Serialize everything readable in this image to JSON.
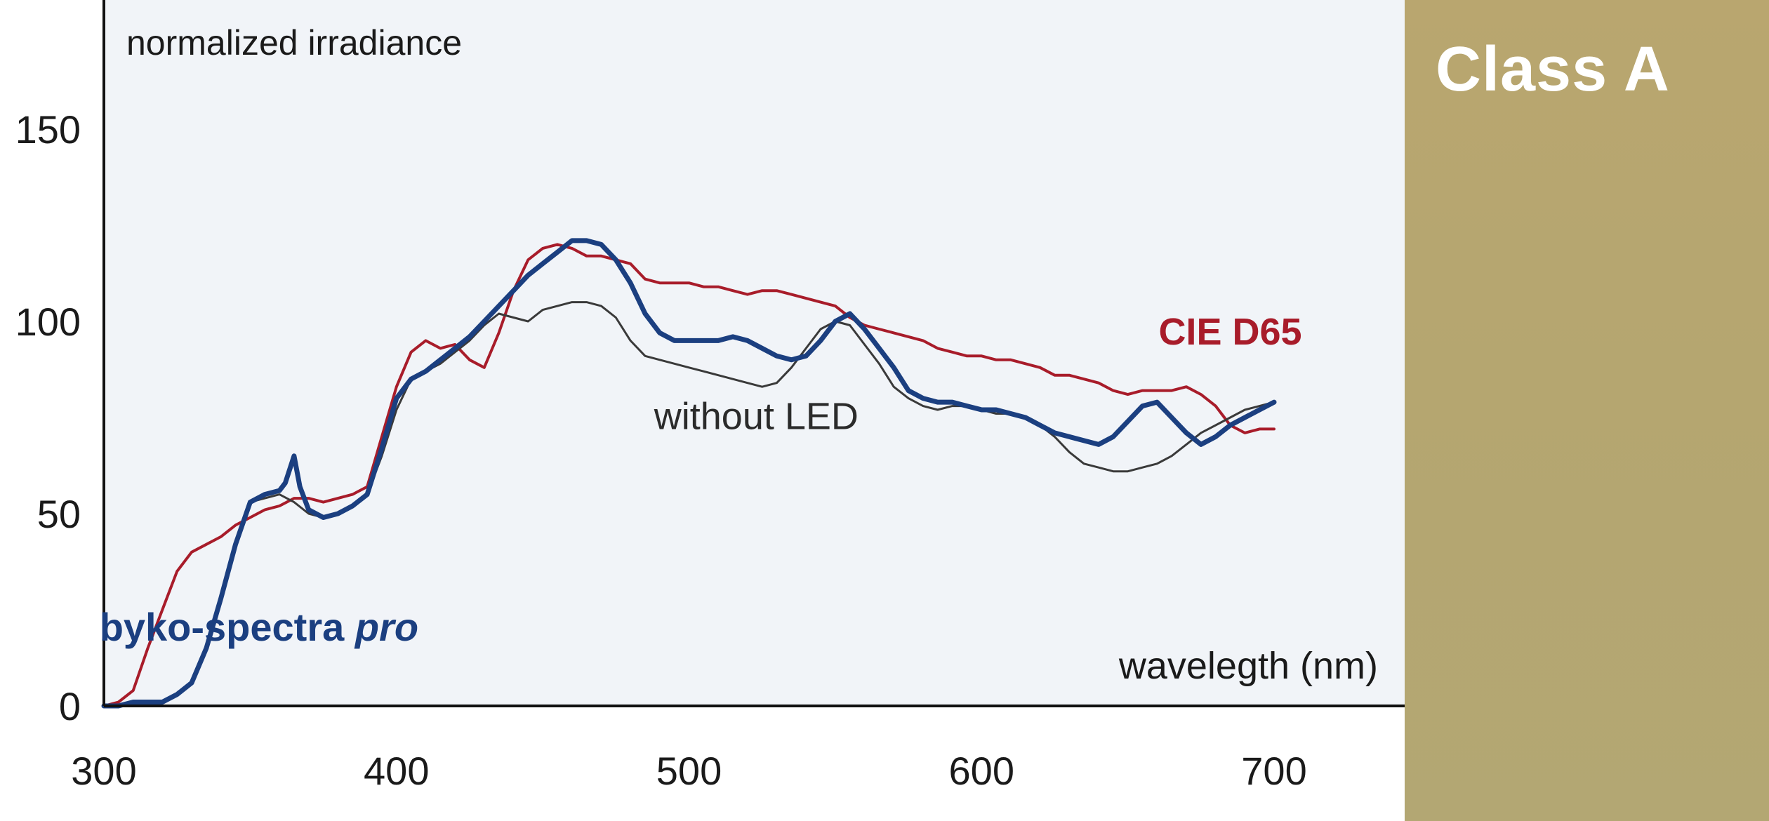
{
  "panel": {
    "label": "Class A",
    "color": "#b7a670"
  },
  "chart_data": {
    "type": "line",
    "ylabel": "normalized irradiance",
    "xlabel": "wavelegth (nm)",
    "xlim": [
      300,
      740
    ],
    "ylim": [
      0,
      180
    ],
    "x_ticks": [
      300,
      400,
      500,
      600,
      700
    ],
    "y_ticks": [
      0,
      50,
      100,
      150
    ],
    "grid": false,
    "plot_background": "#f1f4f8",
    "series": [
      {
        "name": "CIE D65",
        "color": "#a81c2a",
        "x": [
          300,
          305,
          310,
          315,
          320,
          325,
          330,
          335,
          340,
          345,
          350,
          355,
          360,
          365,
          370,
          375,
          380,
          385,
          390,
          395,
          400,
          405,
          410,
          415,
          420,
          425,
          430,
          435,
          440,
          445,
          450,
          455,
          460,
          465,
          470,
          475,
          480,
          485,
          490,
          495,
          500,
          505,
          510,
          515,
          520,
          525,
          530,
          535,
          540,
          545,
          550,
          555,
          560,
          565,
          570,
          575,
          580,
          585,
          590,
          595,
          600,
          605,
          610,
          615,
          620,
          625,
          630,
          635,
          640,
          645,
          650,
          655,
          660,
          665,
          670,
          675,
          680,
          685,
          690,
          695,
          700
        ],
        "y": [
          0,
          1,
          4,
          15,
          25,
          35,
          40,
          42,
          44,
          47,
          49,
          51,
          52,
          54,
          54,
          53,
          54,
          55,
          57,
          70,
          83,
          92,
          95,
          93,
          94,
          90,
          88,
          97,
          108,
          116,
          119,
          120,
          119,
          117,
          117,
          116,
          115,
          111,
          110,
          110,
          110,
          109,
          109,
          108,
          107,
          108,
          108,
          107,
          106,
          105,
          104,
          101,
          99,
          98,
          97,
          96,
          95,
          93,
          92,
          91,
          91,
          90,
          90,
          89,
          88,
          86,
          86,
          85,
          84,
          82,
          81,
          82,
          82,
          82,
          83,
          81,
          78,
          73,
          71,
          72,
          72
        ]
      },
      {
        "name": "without LED",
        "color": "#3a3a3a",
        "x": [
          300,
          305,
          310,
          315,
          320,
          325,
          330,
          335,
          340,
          345,
          350,
          355,
          360,
          365,
          370,
          375,
          380,
          385,
          390,
          395,
          400,
          405,
          410,
          415,
          420,
          425,
          430,
          435,
          440,
          445,
          450,
          455,
          460,
          465,
          470,
          475,
          480,
          485,
          490,
          495,
          500,
          505,
          510,
          515,
          520,
          525,
          530,
          535,
          540,
          545,
          550,
          555,
          560,
          565,
          570,
          575,
          580,
          585,
          590,
          595,
          600,
          605,
          610,
          615,
          620,
          625,
          630,
          635,
          640,
          645,
          650,
          655,
          660,
          665,
          670,
          675,
          680,
          685,
          690,
          695,
          700
        ],
        "y": [
          0,
          0,
          1,
          1,
          1,
          3,
          6,
          15,
          28,
          42,
          53,
          54,
          55,
          53,
          50,
          49,
          50,
          52,
          55,
          65,
          77,
          85,
          87,
          89,
          92,
          95,
          99,
          102,
          101,
          100,
          103,
          104,
          105,
          105,
          104,
          101,
          95,
          91,
          90,
          89,
          88,
          87,
          86,
          85,
          84,
          83,
          84,
          88,
          93,
          98,
          100,
          99,
          94,
          89,
          83,
          80,
          78,
          77,
          78,
          78,
          77,
          76,
          76,
          75,
          73,
          70,
          66,
          63,
          62,
          61,
          61,
          62,
          63,
          65,
          68,
          71,
          73,
          75,
          77,
          78,
          79
        ]
      },
      {
        "name": "byko-spectra pro",
        "color": "#1b3f80",
        "x": [
          300,
          305,
          310,
          315,
          320,
          325,
          330,
          335,
          340,
          345,
          350,
          355,
          360,
          362,
          365,
          367,
          370,
          375,
          380,
          385,
          390,
          395,
          400,
          405,
          410,
          415,
          420,
          425,
          430,
          435,
          440,
          445,
          450,
          455,
          460,
          465,
          470,
          475,
          480,
          485,
          490,
          495,
          500,
          505,
          510,
          515,
          520,
          525,
          530,
          535,
          540,
          545,
          550,
          555,
          560,
          565,
          570,
          575,
          580,
          585,
          590,
          595,
          600,
          605,
          610,
          615,
          620,
          625,
          630,
          635,
          640,
          645,
          650,
          655,
          660,
          665,
          670,
          675,
          680,
          685,
          690,
          695,
          700
        ],
        "y": [
          0,
          0,
          1,
          1,
          1,
          3,
          6,
          15,
          28,
          42,
          53,
          55,
          56,
          58,
          65,
          57,
          51,
          49,
          50,
          52,
          55,
          67,
          80,
          85,
          87,
          90,
          93,
          96,
          100,
          104,
          108,
          112,
          115,
          118,
          121,
          121,
          120,
          116,
          110,
          102,
          97,
          95,
          95,
          95,
          95,
          96,
          95,
          93,
          91,
          90,
          91,
          95,
          100,
          102,
          98,
          93,
          88,
          82,
          80,
          79,
          79,
          78,
          77,
          77,
          76,
          75,
          73,
          71,
          70,
          69,
          68,
          70,
          74,
          78,
          79,
          75,
          71,
          68,
          70,
          73,
          75,
          77,
          79
        ]
      }
    ],
    "annotations": [
      {
        "text": "CIE D65",
        "x": 685,
        "y": 94,
        "color": "#a81c2a"
      },
      {
        "text": "without LED",
        "x": 523,
        "y": 72,
        "color": "#2b2b2b"
      },
      {
        "text_plain": "byko-spectra ",
        "text_italic": "pro",
        "x": 353,
        "y": 17,
        "color": "#1b3f80"
      }
    ]
  }
}
